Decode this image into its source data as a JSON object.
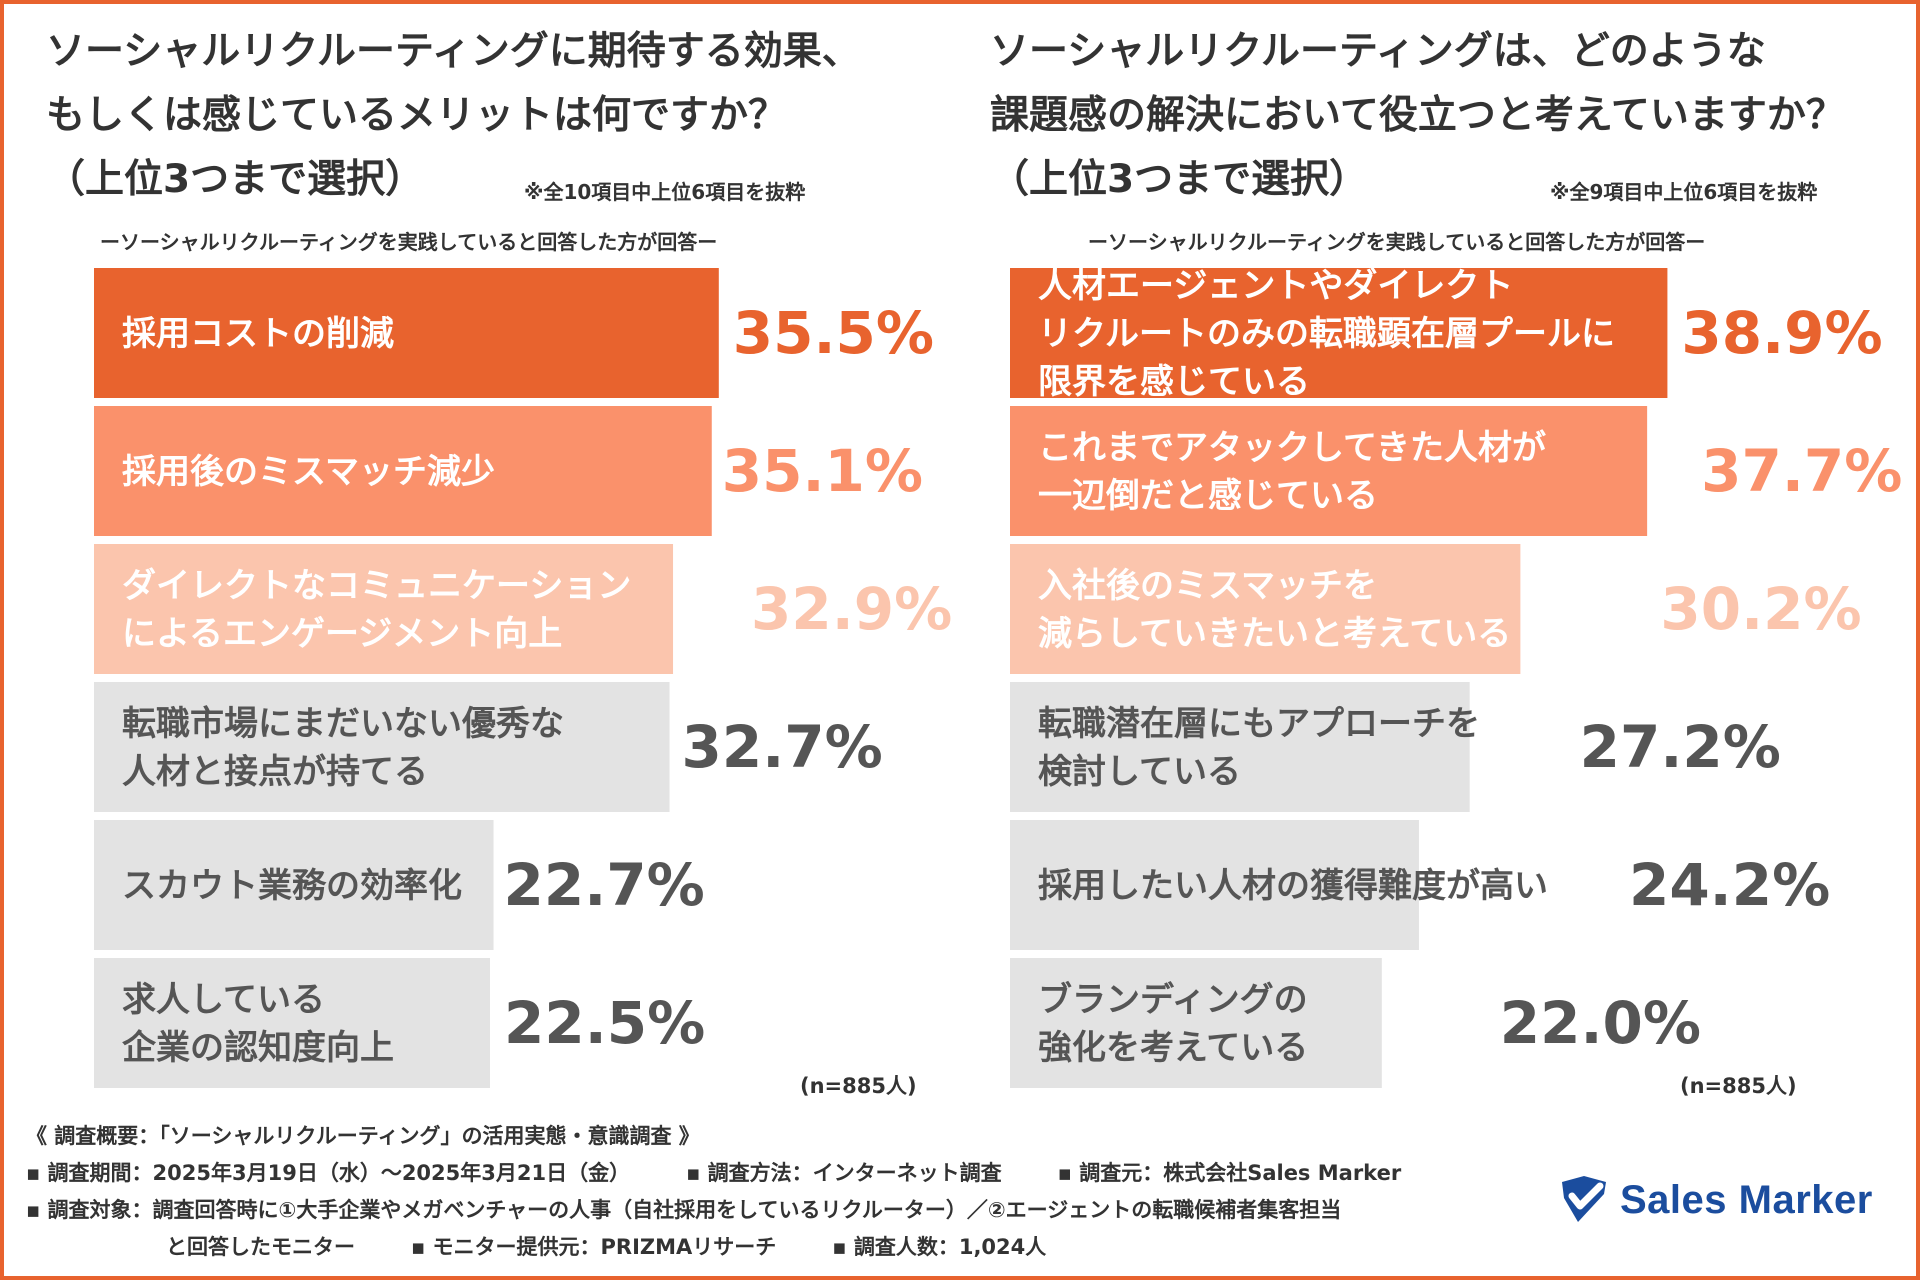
{
  "colors": {
    "frame": "#e8632e",
    "tier1": "#e8632e",
    "tier2": "#fa916b",
    "tier3": "#fbc5ad",
    "grey": "#e3e3e3",
    "grey_text": "#555555",
    "logo": "#1b4d9e"
  },
  "left": {
    "title_lines": [
      "ソーシャルリクルーティングに期待する効果、",
      "もしくは感じているメリットは何ですか？",
      "（上位3つまで選択）"
    ],
    "note": "※全10項目中上位6項目を抜粋",
    "subtitle": "ーソーシャルリクルーティングを実践していると回答した方が回答ー",
    "n_label": "(n=885人)"
  },
  "right": {
    "title_lines": [
      "ソーシャルリクルーティングは、どのような",
      "課題感の解決において役立つと考えていますか？",
      "（上位3つまで選択）"
    ],
    "note": "※全9項目中上位6項目を抜粋",
    "subtitle": "ーソーシャルリクルーティングを実践していると回答した方が回答ー",
    "n_label": "(n=885人)"
  },
  "chart_data": [
    {
      "type": "bar",
      "orientation": "horizontal",
      "title": "ソーシャルリクルーティングに期待する効果、もしくは感じているメリットは何ですか？（上位3つまで選択）",
      "unit": "%",
      "categories": [
        [
          "採用コストの削減"
        ],
        [
          "採用後のミスマッチ減少"
        ],
        [
          "ダイレクトなコミュニケーション",
          "によるエンゲージメント向上"
        ],
        [
          "転職市場にまだいない優秀な",
          "人材と接点が持てる"
        ],
        [
          "スカウト業務の効率化"
        ],
        [
          "求人している",
          "企業の認知度向上"
        ]
      ],
      "values": [
        35.5,
        35.1,
        32.9,
        32.7,
        22.7,
        22.5
      ],
      "value_labels": [
        "35.5%",
        "35.1%",
        "32.9%",
        "32.7%",
        "22.7%",
        "22.5%"
      ],
      "xlim": [
        0,
        40
      ]
    },
    {
      "type": "bar",
      "orientation": "horizontal",
      "title": "ソーシャルリクルーティングは、どのような課題感の解決において役立つと考えていますか？（上位3つまで選択）",
      "unit": "%",
      "categories": [
        [
          "人材エージェントやダイレクト",
          "リクルートのみの転職顕在層プールに",
          "限界を感じている"
        ],
        [
          "これまでアタックしてきた人材が",
          "一辺倒だと感じている"
        ],
        [
          "入社後のミスマッチを",
          "減らしていきたいと考えている"
        ],
        [
          "転職潜在層にもアプローチを",
          "検討している"
        ],
        [
          "採用したい人材の獲得難度が高い"
        ],
        [
          "ブランディングの",
          "強化を考えている"
        ]
      ],
      "values": [
        38.9,
        37.7,
        30.2,
        27.2,
        24.2,
        22.0
      ],
      "value_labels": [
        "38.9%",
        "37.7%",
        "30.2%",
        "27.2%",
        "24.2%",
        "22.0%"
      ],
      "xlim": [
        0,
        40
      ]
    }
  ],
  "footer": {
    "heading": "《 調査概要：「ソーシャルリクルーティング」の活用実態・意識調査 》",
    "period": "▪ 調査期間：2025年3月19日（水）〜2025年3月21日（金）",
    "method": "▪ 調査方法：インターネット調査",
    "source": "▪ 調査元：株式会社Sales Marker",
    "target": "▪ 調査対象：調査回答時に①大手企業やメガベンチャーの人事（自社採用をしているリクルーター）／②エージェントの転職候補者集客担当",
    "target_cont": "と回答したモニター",
    "provider": "▪ モニター提供元：PRIZMAリサーチ",
    "respondents": "▪ 調査人数：1,024人"
  },
  "logo": {
    "icon": "check-shield-icon",
    "text": "Sales Marker"
  }
}
